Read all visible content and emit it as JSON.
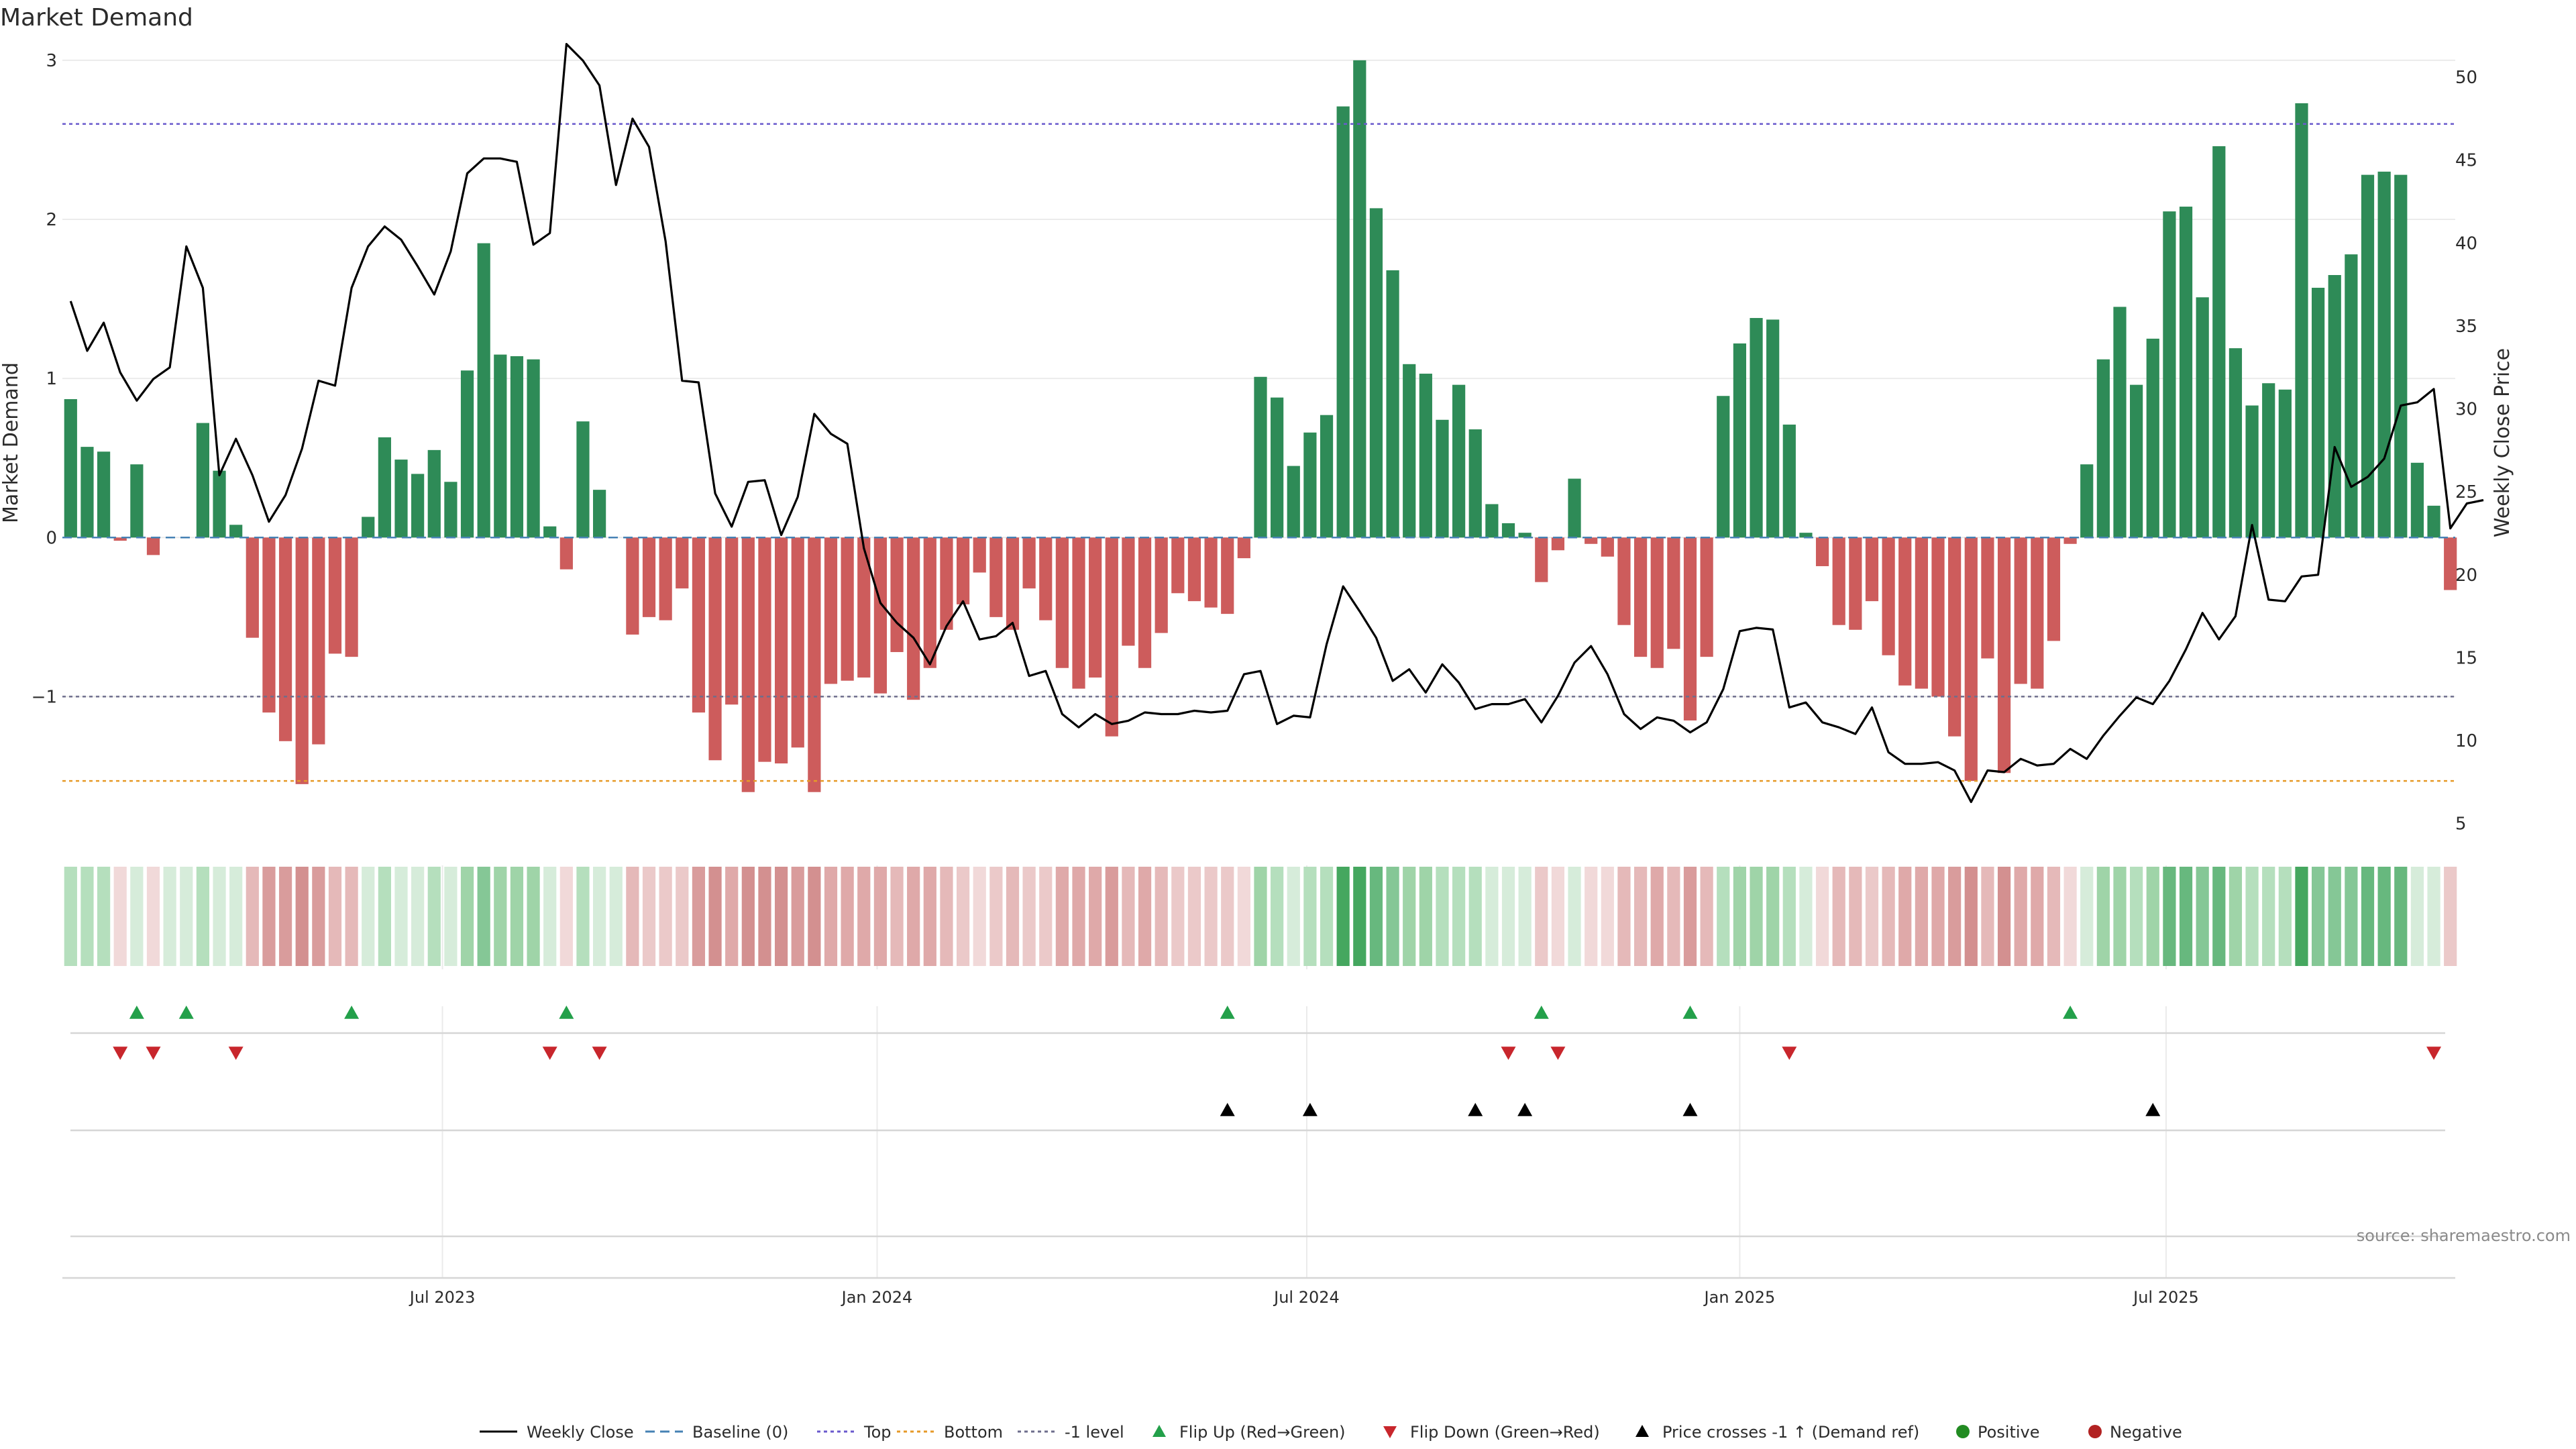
{
  "chart_data": {
    "type": "bar",
    "title": "Market Demand",
    "ylabel": "Market Demand",
    "y2label": "Weekly Close Price",
    "source": "source: sharemaestro.com",
    "ylim": [
      -1.85,
      3.05
    ],
    "y2lim": [
      4.5,
      51.5
    ],
    "yticks": [
      -1,
      0,
      1,
      2,
      3
    ],
    "ytick_labels": [
      "−1",
      "0",
      "1",
      "2",
      "3"
    ],
    "y2ticks": [
      5,
      10,
      15,
      20,
      25,
      30,
      35,
      40,
      45,
      50
    ],
    "xtick_labels": [
      "Jul 2023",
      "Jan 2024",
      "Jul 2024",
      "Jan 2025",
      "Jul 2025"
    ],
    "xtick_weeks": [
      22.5,
      48.8,
      74.8,
      101.0,
      126.8
    ],
    "reference_lines": {
      "top": 2.6,
      "bottom": -1.53,
      "minus_one": -1.0,
      "baseline": 0
    },
    "colors": {
      "positive_bar": "#2e8b57",
      "negative_bar": "#cd5c5c",
      "price_line": "#000000",
      "top_line": "#6a5acd",
      "bottom_line": "#e69a28",
      "minus_one_line": "#6e6e8c",
      "baseline_line": "#4682b4",
      "flip_up": "#23a04a",
      "flip_down": "#c8262c",
      "cross_marker": "#000000",
      "positive_dot": "#228b22",
      "negative_dot": "#b22222"
    },
    "demand": [
      0.87,
      0.57,
      0.54,
      -0.02,
      0.46,
      -0.11,
      0.0,
      0.0,
      0.72,
      0.42,
      0.08,
      -0.63,
      -1.1,
      -1.28,
      -1.55,
      -1.3,
      -0.73,
      -0.75,
      0.13,
      0.63,
      0.49,
      0.4,
      0.55,
      0.35,
      1.05,
      1.85,
      1.15,
      1.14,
      1.12,
      0.07,
      -0.2,
      0.73,
      0.3,
      0.0,
      -0.61,
      -0.5,
      -0.52,
      -0.32,
      -1.1,
      -1.4,
      -1.05,
      -1.6,
      -1.41,
      -1.42,
      -1.32,
      -1.6,
      -0.92,
      -0.9,
      -0.88,
      -0.98,
      -0.72,
      -1.02,
      -0.82,
      -0.58,
      -0.42,
      -0.22,
      -0.5,
      -0.58,
      -0.32,
      -0.52,
      -0.82,
      -0.95,
      -0.88,
      -1.25,
      -0.68,
      -0.82,
      -0.6,
      -0.35,
      -0.4,
      -0.44,
      -0.48,
      -0.13,
      1.01,
      0.88,
      0.45,
      0.66,
      0.77,
      2.71,
      3.0,
      2.07,
      1.68,
      1.09,
      1.03,
      0.74,
      0.96,
      0.68,
      0.21,
      0.09,
      0.03,
      -0.28,
      -0.08,
      0.37,
      -0.04,
      -0.12,
      -0.55,
      -0.75,
      -0.82,
      -0.7,
      -1.15,
      -0.75,
      0.89,
      1.22,
      1.38,
      1.37,
      0.71,
      0.03,
      -0.18,
      -0.55,
      -0.58,
      -0.4,
      -0.74,
      -0.93,
      -0.95,
      -1.0,
      -1.25,
      -1.53,
      -0.76,
      -1.48,
      -0.92,
      -0.95,
      -0.65,
      -0.04,
      0.46,
      1.12,
      1.45,
      0.96,
      1.25,
      2.05,
      2.08,
      1.51,
      2.46,
      1.19,
      0.83,
      0.97,
      0.93,
      2.73,
      1.57,
      1.65,
      1.78,
      2.28,
      2.3,
      2.28,
      0.47,
      0.2,
      -0.33
    ],
    "price": [
      36.5,
      33.5,
      35.2,
      32.2,
      30.5,
      31.8,
      32.5,
      39.8,
      37.3,
      26.0,
      28.2,
      26.0,
      23.2,
      24.8,
      27.6,
      31.7,
      31.4,
      37.3,
      39.8,
      41.0,
      40.2,
      38.6,
      36.9,
      39.5,
      44.2,
      45.1,
      45.1,
      44.9,
      39.9,
      40.6,
      52.0,
      51.0,
      49.5,
      43.5,
      47.5,
      45.8,
      40.1,
      31.7,
      31.6,
      24.9,
      22.9,
      25.6,
      25.7,
      22.4,
      24.7,
      29.7,
      28.5,
      27.9,
      21.6,
      18.3,
      17.1,
      16.2,
      14.6,
      16.9,
      18.4,
      16.1,
      16.3,
      17.1,
      13.9,
      14.2,
      11.6,
      10.8,
      11.6,
      11.0,
      11.2,
      11.7,
      11.6,
      11.6,
      11.8,
      11.7,
      11.8,
      14.0,
      14.2,
      11.0,
      11.5,
      11.4,
      15.8,
      19.3,
      17.8,
      16.2,
      13.6,
      14.3,
      12.9,
      14.6,
      13.5,
      11.9,
      12.2,
      12.2,
      12.5,
      11.1,
      12.7,
      14.7,
      15.7,
      14.0,
      11.6,
      10.7,
      11.4,
      11.2,
      10.5,
      11.1,
      13.1,
      16.6,
      16.8,
      16.7,
      12.0,
      12.3,
      11.1,
      10.8,
      10.4,
      12.0,
      9.3,
      8.6,
      8.6,
      8.7,
      8.2,
      6.3,
      8.2,
      8.1,
      8.9,
      8.5,
      8.6,
      9.5,
      8.9,
      10.3,
      11.5,
      12.6,
      12.2,
      13.6,
      15.5,
      17.7,
      16.1,
      17.5,
      23.0,
      18.5,
      18.4,
      19.9,
      20.0,
      27.7,
      25.3,
      25.9,
      27.0,
      30.2,
      30.4,
      31.2,
      22.8,
      24.3,
      24.5
    ],
    "heat_strip": {
      "positive_palette": [
        "#d6ecda",
        "#b5dfbd",
        "#9fd4a8",
        "#85c796",
        "#67b87e",
        "#45a75f"
      ],
      "negative_palette": [
        "#f1d9d9",
        "#ebc9c9",
        "#e5b9b9",
        "#dfa9a9",
        "#d99c9c",
        "#d39090"
      ]
    },
    "flip_up_weeks": [
      4,
      7,
      17,
      30,
      70,
      89,
      98,
      121
    ],
    "flip_down_weeks": [
      3,
      5,
      10,
      29,
      32,
      87,
      90,
      104,
      143
    ],
    "price_cross_weeks": [
      70,
      75,
      85,
      88,
      98,
      126
    ],
    "legend": [
      {
        "label": "Weekly Close",
        "kind": "line-solid",
        "color": "#000000"
      },
      {
        "label": "Baseline (0)",
        "kind": "line-dashed",
        "color": "#4682b4"
      },
      {
        "label": "Top",
        "kind": "line-dotted",
        "color": "#6a5acd"
      },
      {
        "label": "Bottom",
        "kind": "line-dotted",
        "color": "#e69a28"
      },
      {
        "label": "-1 level",
        "kind": "line-dotted",
        "color": "#6e6e8c"
      },
      {
        "label": "Flip Up (Red→Green)",
        "kind": "triangle-up",
        "color": "#23a04a"
      },
      {
        "label": "Flip Down (Green→Red)",
        "kind": "triangle-down",
        "color": "#c8262c"
      },
      {
        "label": "Price crosses -1 ↑ (Demand ref)",
        "kind": "triangle-up",
        "color": "#000000"
      },
      {
        "label": "Positive",
        "kind": "dot",
        "color": "#228b22"
      },
      {
        "label": "Negative",
        "kind": "dot",
        "color": "#b22222"
      }
    ]
  }
}
